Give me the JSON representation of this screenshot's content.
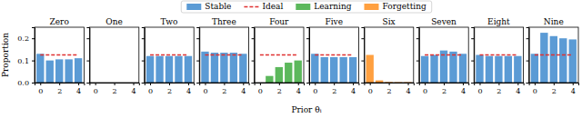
{
  "chart_data": [
    {
      "type": "bar",
      "title": "Zero",
      "legend": "top",
      "y_label": "Proportion",
      "x": [
        0,
        1,
        2,
        3,
        4
      ],
      "xlim": [
        -0.6,
        4.6
      ],
      "xticks": [
        0,
        2,
        4
      ],
      "ylim": [
        0,
        0.25
      ],
      "yticks": [
        {
          "value": 0,
          "label": "0.0"
        },
        0.1,
        0.2
      ],
      "series": [
        {
          "name": "Stable",
          "color": "#5b9bd5",
          "values": [
            0.13,
            0.1,
            0.105,
            0.105,
            0.11
          ]
        },
        {
          "name": "Ideal",
          "type": "line",
          "line_style": "dashed",
          "color": "#e03030",
          "values": [
            0.125,
            0.125,
            0.125,
            0.125,
            0.125
          ]
        }
      ]
    },
    {
      "type": "bar",
      "title": "One",
      "tick_labels": "x",
      "x": [
        0,
        1,
        2,
        3,
        4
      ],
      "xlim": [
        -0.6,
        4.6
      ],
      "xticks": [
        0,
        2,
        4
      ],
      "ylim": [
        0,
        0.25
      ],
      "yticks": [
        0,
        0.1,
        0.2
      ],
      "series": [
        {
          "name": "Stable",
          "color": "#5b9bd5",
          "values": [
            0,
            0,
            0,
            0,
            0
          ]
        }
      ]
    },
    {
      "type": "bar",
      "title": "Two",
      "tick_labels": "x",
      "x": [
        0,
        1,
        2,
        3,
        4
      ],
      "xlim": [
        -0.6,
        4.6
      ],
      "xticks": [
        0,
        2,
        4
      ],
      "ylim": [
        0,
        0.25
      ],
      "yticks": [
        0,
        0.1,
        0.2
      ],
      "series": [
        {
          "name": "Stable",
          "color": "#5b9bd5",
          "values": [
            0.12,
            0.12,
            0.12,
            0.12,
            0.12
          ]
        },
        {
          "name": "Ideal",
          "type": "line",
          "line_style": "dashed",
          "color": "#e03030",
          "values": [
            0.125,
            0.125,
            0.125,
            0.125,
            0.125
          ]
        }
      ]
    },
    {
      "type": "bar",
      "title": "Three",
      "tick_labels": "x",
      "x": [
        0,
        1,
        2,
        3,
        4
      ],
      "xlim": [
        -0.6,
        4.6
      ],
      "xticks": [
        0,
        2,
        4
      ],
      "ylim": [
        0,
        0.25
      ],
      "yticks": [
        0,
        0.1,
        0.2
      ],
      "series": [
        {
          "name": "Stable",
          "color": "#5b9bd5",
          "values": [
            0.14,
            0.135,
            0.135,
            0.135,
            0.13
          ]
        },
        {
          "name": "Ideal",
          "type": "line",
          "line_style": "dashed",
          "color": "#e03030",
          "values": [
            0.125,
            0.125,
            0.125,
            0.125,
            0.125
          ]
        }
      ]
    },
    {
      "type": "bar",
      "title": "Four",
      "tick_labels": "x",
      "x": [
        0,
        1,
        2,
        3,
        4
      ],
      "xlim": [
        -0.6,
        4.6
      ],
      "xticks": [
        0,
        2,
        4
      ],
      "ylim": [
        0,
        0.25
      ],
      "yticks": [
        0,
        0.1,
        0.2
      ],
      "series": [
        {
          "name": "Learning",
          "color": "#5cb85c",
          "values": [
            0,
            0.03,
            0.07,
            0.09,
            0.1
          ]
        },
        {
          "name": "Ideal",
          "type": "line",
          "line_style": "dashed",
          "color": "#e03030",
          "values": [
            0.125,
            0.125,
            0.125,
            0.125,
            0.125
          ]
        }
      ]
    },
    {
      "type": "bar",
      "title": "Five",
      "tick_labels": "x",
      "x_label": "Prior θᵢ",
      "x": [
        0,
        1,
        2,
        3,
        4
      ],
      "xlim": [
        -0.6,
        4.6
      ],
      "xticks": [
        0,
        2,
        4
      ],
      "ylim": [
        0,
        0.25
      ],
      "yticks": [
        0,
        0.1,
        0.2
      ],
      "series": [
        {
          "name": "Stable",
          "color": "#5b9bd5",
          "values": [
            0.13,
            0.115,
            0.115,
            0.115,
            0.115
          ]
        },
        {
          "name": "Ideal",
          "type": "line",
          "line_style": "dashed",
          "color": "#e03030",
          "values": [
            0.125,
            0.125,
            0.125,
            0.125,
            0.125
          ]
        }
      ]
    },
    {
      "type": "bar",
      "title": "Six",
      "tick_labels": "x",
      "x": [
        0,
        1,
        2,
        3,
        4
      ],
      "xlim": [
        -0.6,
        4.6
      ],
      "xticks": [
        0,
        2,
        4
      ],
      "ylim": [
        0,
        0.25
      ],
      "yticks": [
        0,
        0.1,
        0.2
      ],
      "series": [
        {
          "name": "Forgetting",
          "color": "#ffa040",
          "values": [
            0.125,
            0.01,
            0.003,
            0.002,
            0.002
          ]
        }
      ]
    },
    {
      "type": "bar",
      "title": "Seven",
      "tick_labels": "x",
      "x": [
        0,
        1,
        2,
        3,
        4
      ],
      "xlim": [
        -0.6,
        4.6
      ],
      "xticks": [
        0,
        2,
        4
      ],
      "ylim": [
        0,
        0.25
      ],
      "yticks": [
        0,
        0.1,
        0.2
      ],
      "series": [
        {
          "name": "Stable",
          "color": "#5b9bd5",
          "values": [
            0.12,
            0.125,
            0.145,
            0.14,
            0.13
          ]
        },
        {
          "name": "Ideal",
          "type": "line",
          "line_style": "dashed",
          "color": "#e03030",
          "values": [
            0.125,
            0.125,
            0.125,
            0.125,
            0.125
          ]
        }
      ]
    },
    {
      "type": "bar",
      "title": "Eight",
      "tick_labels": "x",
      "x": [
        0,
        1,
        2,
        3,
        4
      ],
      "xlim": [
        -0.6,
        4.6
      ],
      "xticks": [
        0,
        2,
        4
      ],
      "ylim": [
        0,
        0.25
      ],
      "yticks": [
        0,
        0.1,
        0.2
      ],
      "series": [
        {
          "name": "Stable",
          "color": "#5b9bd5",
          "values": [
            0.125,
            0.12,
            0.12,
            0.12,
            0.12
          ]
        },
        {
          "name": "Ideal",
          "type": "line",
          "line_style": "dashed",
          "color": "#e03030",
          "values": [
            0.125,
            0.125,
            0.125,
            0.125,
            0.125
          ]
        }
      ]
    },
    {
      "type": "bar",
      "title": "Nine",
      "tick_labels": "x",
      "x": [
        0,
        1,
        2,
        3,
        4
      ],
      "xlim": [
        -0.6,
        4.6
      ],
      "xticks": [
        0,
        2,
        4
      ],
      "ylim": [
        0,
        0.25
      ],
      "yticks": [
        0,
        0.1,
        0.2
      ],
      "series": [
        {
          "name": "Stable",
          "color": "#5b9bd5",
          "values": [
            0.13,
            0.225,
            0.21,
            0.2,
            0.195
          ]
        },
        {
          "name": "Ideal",
          "type": "line",
          "line_style": "dashed",
          "color": "#e03030",
          "values": [
            0.125,
            0.125,
            0.125,
            0.125,
            0.125
          ]
        }
      ]
    }
  ]
}
